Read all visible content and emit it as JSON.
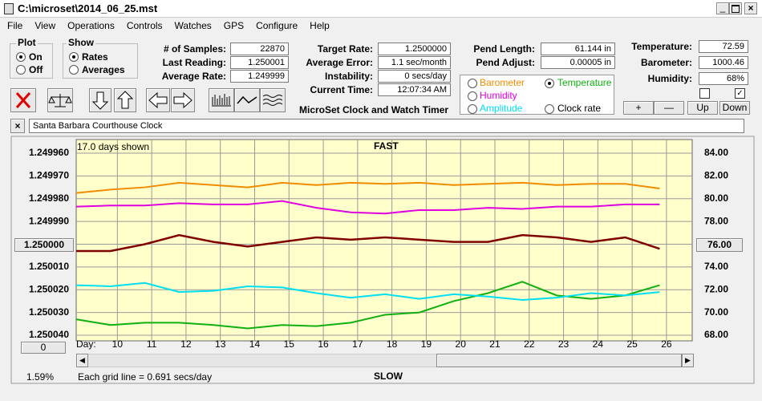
{
  "window": {
    "title": "C:\\microset\\2014_06_25.mst"
  },
  "menu": [
    "File",
    "View",
    "Operations",
    "Controls",
    "Watches",
    "GPS",
    "Configure",
    "Help"
  ],
  "plot": {
    "label": "Plot",
    "options": [
      "On",
      "Off"
    ],
    "checked": 0
  },
  "show": {
    "label": "Show",
    "options": [
      "Rates",
      "Averages"
    ],
    "checked": 0
  },
  "readings": [
    {
      "label": "# of Samples:",
      "value": "22870"
    },
    {
      "label": "Last Reading:",
      "value": "1.250001"
    },
    {
      "label": "Average Rate:",
      "value": "1.249999"
    }
  ],
  "rates": [
    {
      "label": "Target Rate:",
      "value": "1.2500000"
    },
    {
      "label": "Average Error:",
      "value": "1.1 sec/month"
    },
    {
      "label": "Instability:",
      "value": "0 secs/day"
    },
    {
      "label": "Current Time:",
      "value": "12:07:34 AM"
    }
  ],
  "app_name": "MicroSet Clock and Watch Timer",
  "pendulum": [
    {
      "label": "Pend Length:",
      "value": "61.144 in"
    },
    {
      "label": "Pend Adjust:",
      "value": "0.00005 in"
    }
  ],
  "weather": [
    {
      "label": "Temperature:",
      "value": "72.59"
    },
    {
      "label": "Barometer:",
      "value": "1000.46"
    },
    {
      "label": "Humidity:",
      "value": "68%"
    }
  ],
  "buttons": [
    "+",
    "—",
    "Up",
    "Down"
  ],
  "clock_name": "Santa Barbara Courthouse Clock",
  "chart_data": {
    "type": "line",
    "days_shown": "17.0 days shown",
    "top_label": "FAST",
    "bottom_label": "SLOW",
    "grid_note": "Each grid line = 0.691 secs/day",
    "percent": "1.59%",
    "scroll_value": "0",
    "x_label": "Day:",
    "grid": true,
    "background": "#ffffcc",
    "selected_series": 1,
    "x": [
      8.8,
      9.8,
      10.8,
      11.8,
      12.8,
      13.8,
      14.8,
      15.8,
      16.8,
      17.8,
      18.8,
      19.8,
      20.8,
      21.8,
      22.8,
      23.8,
      24.8,
      25.8
    ],
    "xlim": [
      8.8,
      26.75
    ],
    "xticks": [
      10,
      11,
      12,
      13,
      14,
      15,
      16,
      17,
      18,
      19,
      20,
      21,
      22,
      23,
      24,
      25,
      26
    ],
    "ylim": [
      1.25004,
      1.24996
    ],
    "yticks": [
      {
        "value": 1.24996,
        "label": "1.249960"
      },
      {
        "value": 1.24997,
        "label": "1.249970"
      },
      {
        "value": 1.24998,
        "label": "1.249980"
      },
      {
        "value": 1.24999,
        "label": "1.249990"
      },
      {
        "value": 1.25,
        "label": "1.250000"
      },
      {
        "value": 1.25001,
        "label": "1.250010"
      },
      {
        "value": 1.25002,
        "label": "1.250020"
      },
      {
        "value": 1.25003,
        "label": "1.250030"
      },
      {
        "value": 1.25004,
        "label": "1.250040"
      }
    ],
    "y2lim": [
      68,
      84
    ],
    "y2ticks": [
      {
        "value": 84,
        "label": "84.00"
      },
      {
        "value": 82,
        "label": "82.00"
      },
      {
        "value": 80,
        "label": "80.00"
      },
      {
        "value": 78,
        "label": "78.00"
      },
      {
        "value": 76,
        "label": "76.00"
      },
      {
        "value": 74,
        "label": "74.00"
      },
      {
        "value": 72,
        "label": "72.00"
      },
      {
        "value": 70,
        "label": "70.00"
      },
      {
        "value": 68,
        "label": "68.00"
      }
    ],
    "series": [
      {
        "name": "Barometer",
        "color": "#f08c00",
        "axis": "y2",
        "values": [
          80.5,
          80.8,
          81.0,
          81.4,
          81.2,
          81.0,
          81.4,
          81.2,
          81.4,
          81.3,
          81.4,
          81.2,
          81.3,
          81.4,
          81.2,
          81.3,
          81.3,
          80.9
        ]
      },
      {
        "name": "Temperature",
        "color": "#10b010",
        "axis": "y2",
        "values": [
          69.4,
          68.9,
          69.1,
          69.1,
          68.9,
          68.6,
          68.9,
          68.8,
          69.1,
          69.8,
          70.0,
          71.0,
          71.7,
          72.7,
          71.5,
          71.2,
          71.5,
          72.4
        ]
      },
      {
        "name": "Humidity",
        "color": "#e000e0",
        "axis": "y2",
        "values": [
          79.3,
          79.4,
          79.4,
          79.6,
          79.5,
          79.5,
          79.8,
          79.2,
          78.8,
          78.7,
          79.0,
          79.0,
          79.2,
          79.1,
          79.3,
          79.3,
          79.5,
          79.5
        ]
      },
      {
        "name": "Amplitude",
        "color": "#00e0f0",
        "axis": "y2",
        "values": [
          72.4,
          72.3,
          72.6,
          71.8,
          71.9,
          72.3,
          72.2,
          71.7,
          71.3,
          71.6,
          71.2,
          71.6,
          71.4,
          71.1,
          71.3,
          71.7,
          71.5,
          71.8
        ]
      },
      {
        "name": "Clock rate",
        "color": "#800000",
        "values": [
          1.250003,
          1.250003,
          1.25,
          1.249996,
          1.249999,
          1.250001,
          1.249999,
          1.249997,
          1.249998,
          1.249997,
          1.249998,
          1.249999,
          1.249999,
          1.249996,
          1.249997,
          1.249999,
          1.249997,
          1.250002
        ]
      }
    ]
  }
}
